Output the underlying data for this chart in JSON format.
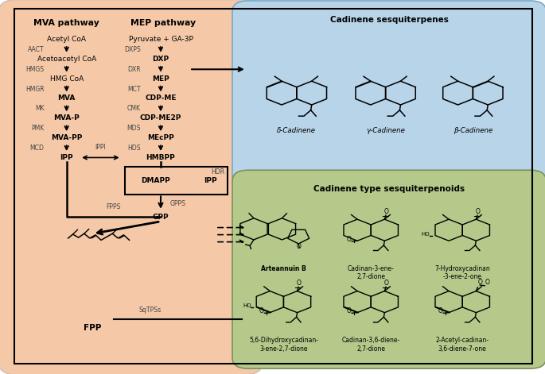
{
  "fig_width": 6.85,
  "fig_height": 4.71,
  "bg_color": "#ffffff",
  "left_panel_color": "#f5c9a8",
  "blue_panel_color": "#b8d4e8",
  "green_panel_color": "#b5c98a",
  "mva_title": "MVA pathway",
  "mep_title": "MEP pathway",
  "blue_title": "Cadinene sesquiterpenes",
  "green_title": "Cadinene type sesquiterpenoids",
  "blue_compounds": [
    "δ-Cadinene",
    "γ-Cadinene",
    "β-Cadinene"
  ],
  "green_compounds_row1": [
    "Arteannuin B",
    "Cadinan-3-ene-\n2,7-dione",
    "7-Hydroxycadinan\n-3-ene-2-one"
  ],
  "green_compounds_row2": [
    "5,6-Dihydroxycadinan-\n3-ene-2,7-dione",
    "Cadinan-3,6-diene-\n2,7-dione",
    "2-Acetyl-cadinan-\n3,6-diene-7-one"
  ]
}
